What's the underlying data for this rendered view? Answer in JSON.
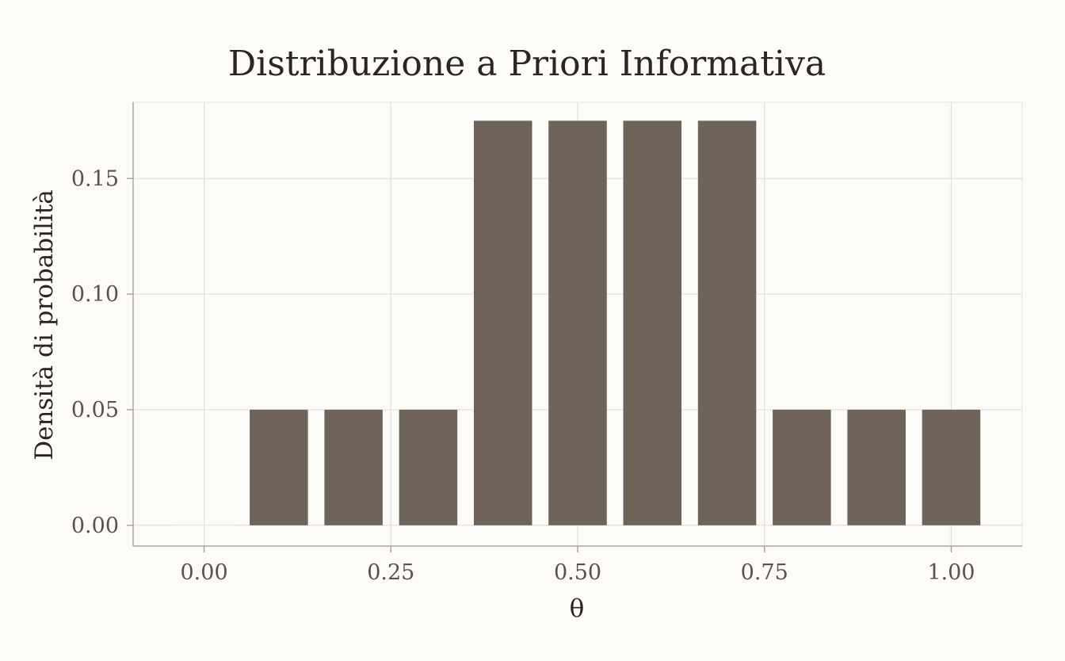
{
  "chart_data": {
    "type": "bar",
    "title": "Distribuzione a Priori Informativa",
    "xlabel": "θ",
    "ylabel": "Densità di probabilità",
    "x": [
      0.0,
      0.1,
      0.2,
      0.3,
      0.4,
      0.5,
      0.6,
      0.7,
      0.8,
      0.9,
      1.0
    ],
    "values": [
      0.0,
      0.05,
      0.05,
      0.05,
      0.175,
      0.175,
      0.175,
      0.175,
      0.05,
      0.05,
      0.05
    ],
    "xlim": [
      -0.095,
      1.095
    ],
    "ylim": [
      -0.009,
      0.183
    ],
    "x_ticks": [
      0.0,
      0.25,
      0.5,
      0.75,
      1.0
    ],
    "x_tick_labels": [
      "0.00",
      "0.25",
      "0.50",
      "0.75",
      "1.00"
    ],
    "y_ticks": [
      0.0,
      0.05,
      0.1,
      0.15
    ],
    "y_tick_labels": [
      "0.00",
      "0.05",
      "0.10",
      "0.15"
    ],
    "bar_width": 0.078,
    "grid": true,
    "legend": "none",
    "colors": {
      "bar": "#6e645a",
      "background": "#fcfbf8"
    }
  }
}
